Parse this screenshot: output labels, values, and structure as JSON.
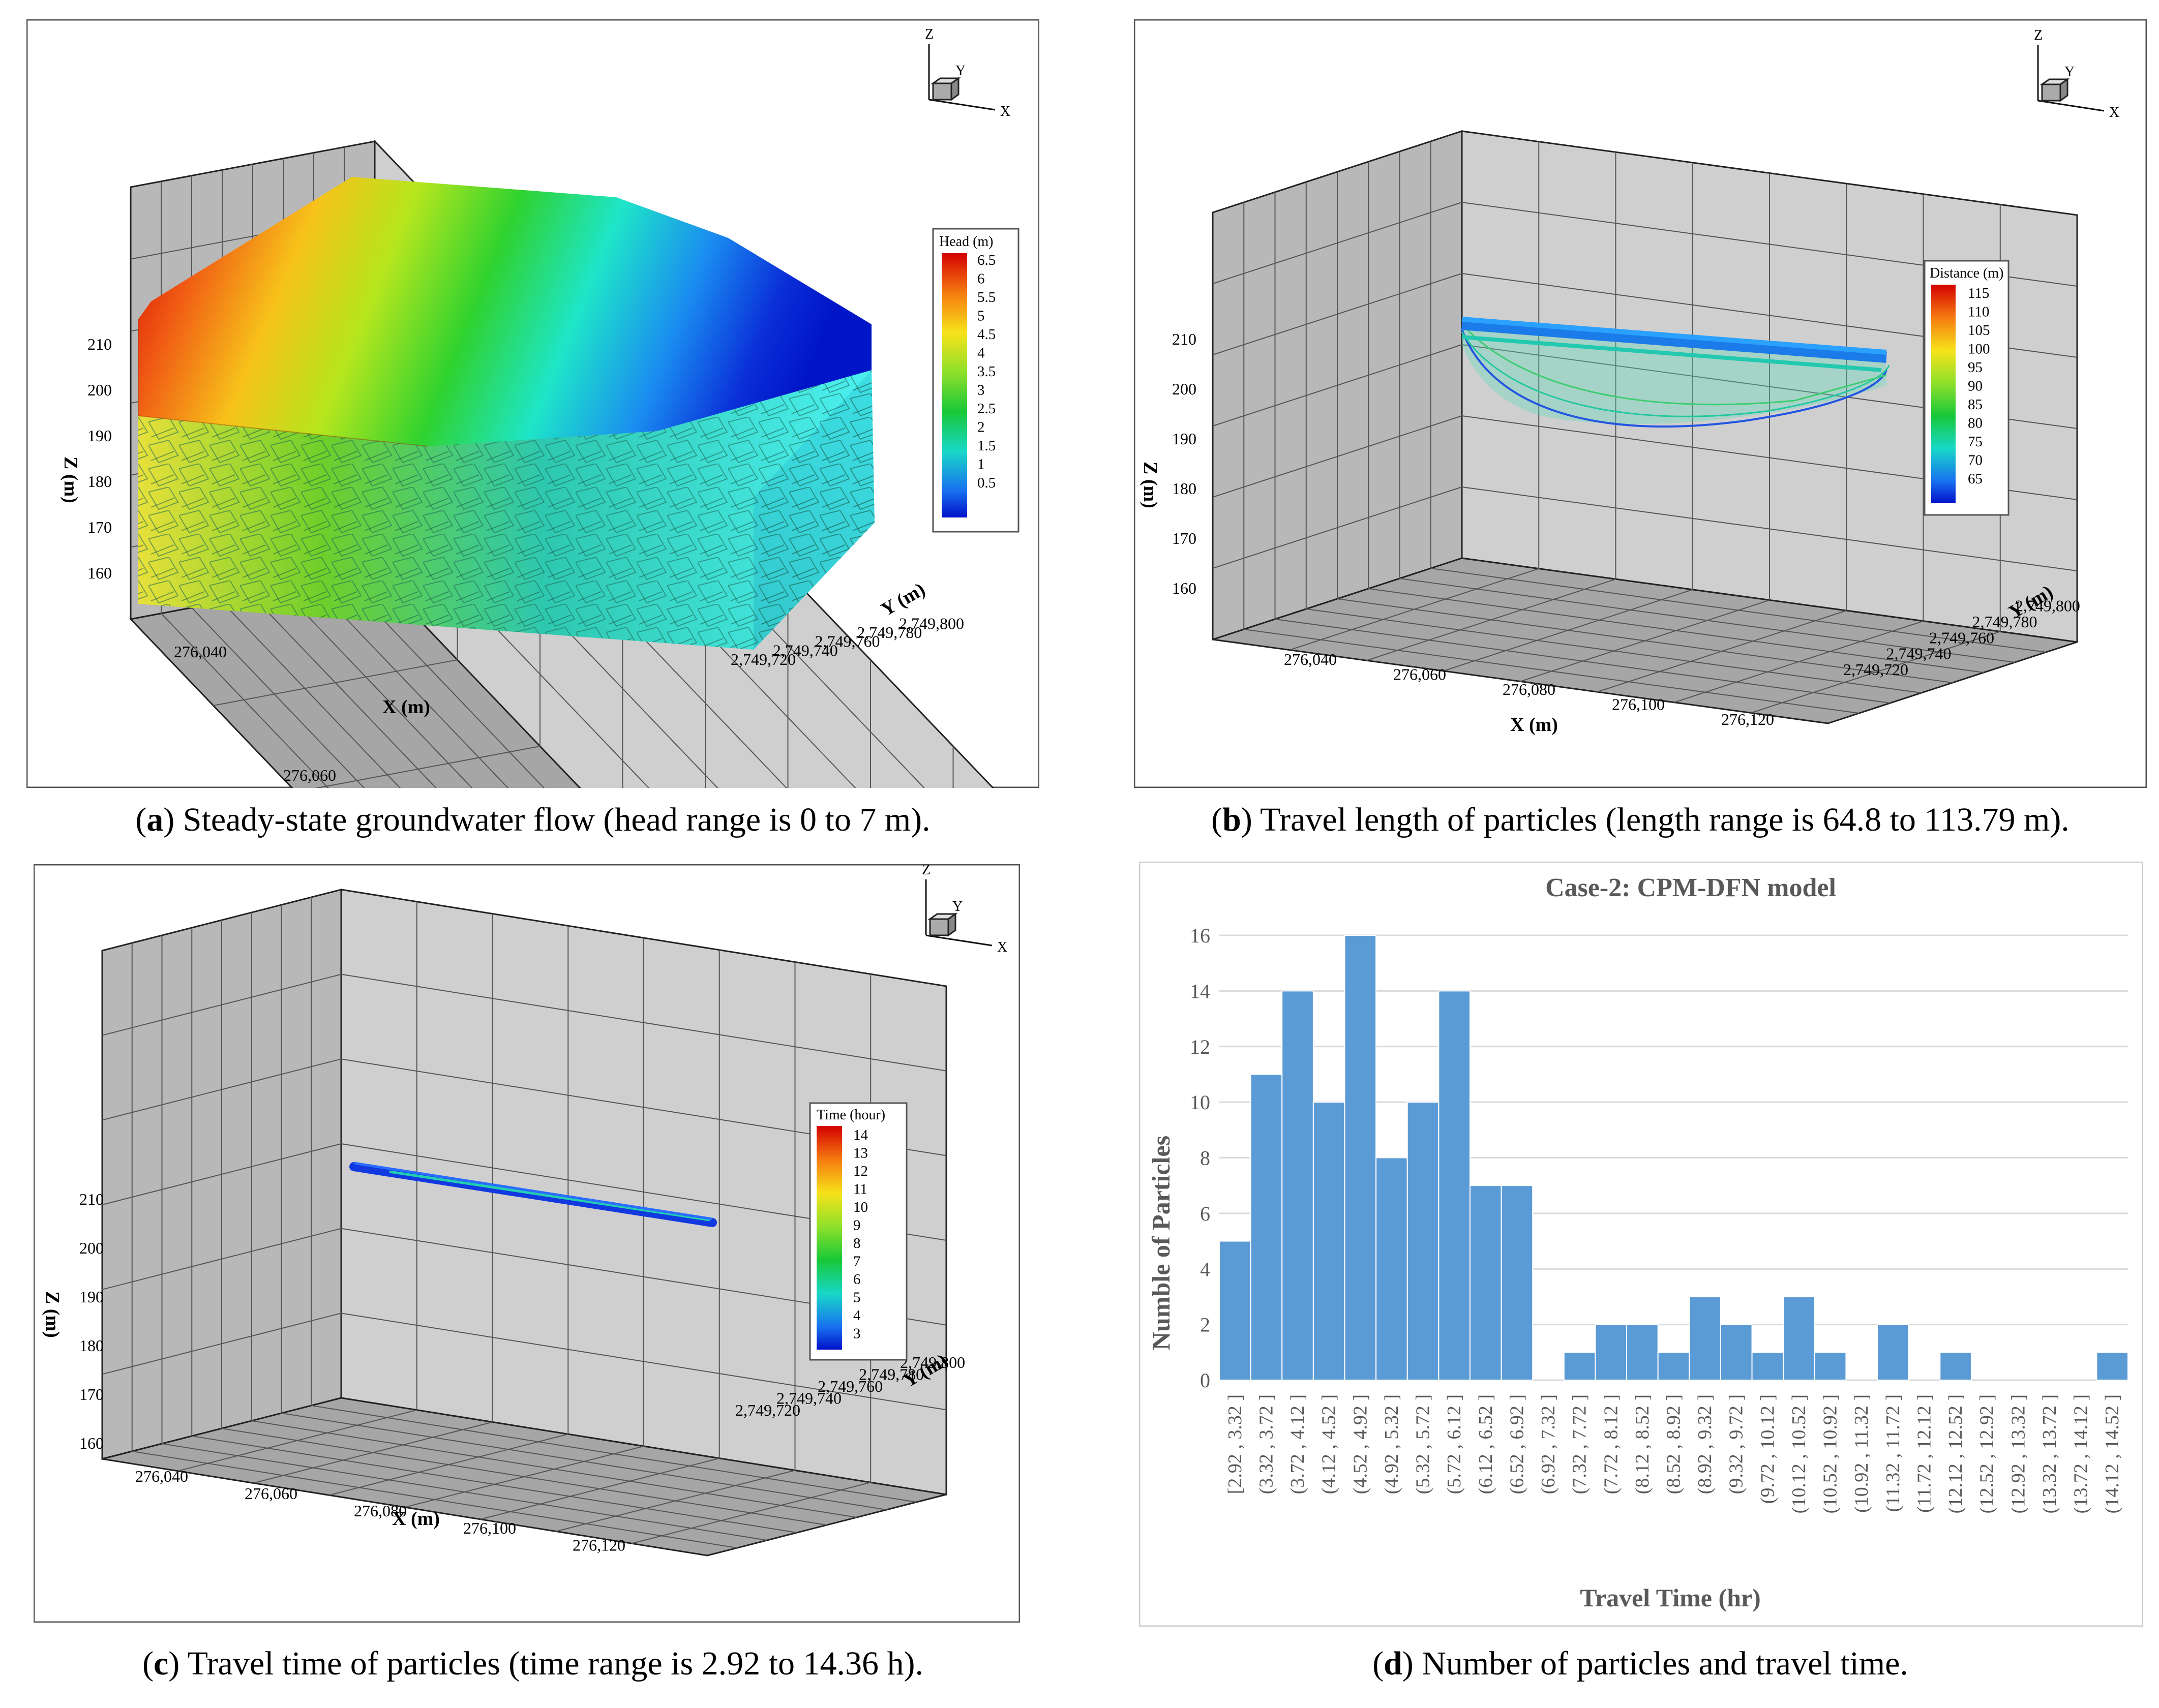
{
  "panels": {
    "a": {
      "letter": "a",
      "caption": ") Steady-state groundwater flow (head range is 0 to 7 m).",
      "legend_title": "Head (m)",
      "legend_values": [
        "6.5",
        "6",
        "5.5",
        "5",
        "4.5",
        "4",
        "3.5",
        "3",
        "2.5",
        "2",
        "1.5",
        "1",
        "0.5"
      ]
    },
    "b": {
      "letter": "b",
      "caption": ") Travel length of particles (length range is 64.8 to 113.79 m).",
      "legend_title": "Distance (m)",
      "legend_values": [
        "115",
        "110",
        "105",
        "100",
        "95",
        "90",
        "85",
        "80",
        "75",
        "70",
        "65"
      ]
    },
    "c": {
      "letter": "c",
      "caption": ") Travel time of particles (time range is 2.92 to 14.36 h).",
      "legend_title": "Time (hour)",
      "legend_values": [
        "14",
        "13",
        "12",
        "11",
        "10",
        "9",
        "8",
        "7",
        "6",
        "5",
        "4",
        "3"
      ]
    },
    "d": {
      "letter": "d",
      "caption": ") Number of particles and travel time."
    }
  },
  "axes3d": {
    "x_label": "X (m)",
    "y_label": "Y (m)",
    "z_label": "Z (m)",
    "x_ticks": [
      "276,040",
      "276,060",
      "276,080",
      "276,100",
      "276,120"
    ],
    "y_ticks": [
      "2,749,720",
      "2,749,740",
      "2,749,760",
      "2,749,780",
      "2,749,800"
    ],
    "z_ticks": [
      "210",
      "200",
      "190",
      "180",
      "170",
      "160"
    ],
    "triad": {
      "z": "Z",
      "y": "Y",
      "x": "X"
    }
  },
  "chart_data": {
    "type": "bar",
    "title": "Case-2: CPM-DFN model",
    "xlabel": "Travel Time (hr)",
    "ylabel": "Numble of Particles",
    "ylim": [
      0,
      16
    ],
    "yticks": [
      0,
      2,
      4,
      6,
      8,
      10,
      12,
      14,
      16
    ],
    "grid": true,
    "color": "#5b9bd5",
    "categories": [
      "[2.92 , 3.32 ]",
      "(3.32 , 3.72 ]",
      "(3.72 , 4.12 ]",
      "(4.12 , 4.52 ]",
      "(4.52 , 4.92 ]",
      "(4.92 , 5.32 ]",
      "(5.32 , 5.72 ]",
      "(5.72 , 6.12 ]",
      "(6.12 , 6.52 ]",
      "(6.52 , 6.92 ]",
      "(6.92 , 7.32 ]",
      "(7.32 , 7.72 ]",
      "(7.72 , 8.12 ]",
      "(8.12 , 8.52 ]",
      "(8.52 , 8.92 ]",
      "(8.92 , 9.32 ]",
      "(9.32 , 9.72 ]",
      "(9.72 , 10.12 ]",
      "(10.12 , 10.52 ]",
      "(10.52 , 10.92 ]",
      "(10.92 , 11.32 ]",
      "(11.32 , 11.72 ]",
      "(11.72 , 12.12 ]",
      "(12.12 , 12.52 ]",
      "(12.52 , 12.92 ]",
      "(12.92 , 13.32 ]",
      "(13.32 , 13.72 ]",
      "(13.72 , 14.12 ]",
      "(14.12 , 14.52 ]"
    ],
    "values": [
      5,
      11,
      14,
      10,
      16,
      8,
      10,
      14,
      7,
      7,
      0,
      1,
      2,
      2,
      1,
      3,
      2,
      1,
      3,
      1,
      0,
      2,
      0,
      1,
      0,
      0,
      0,
      0,
      1
    ]
  }
}
